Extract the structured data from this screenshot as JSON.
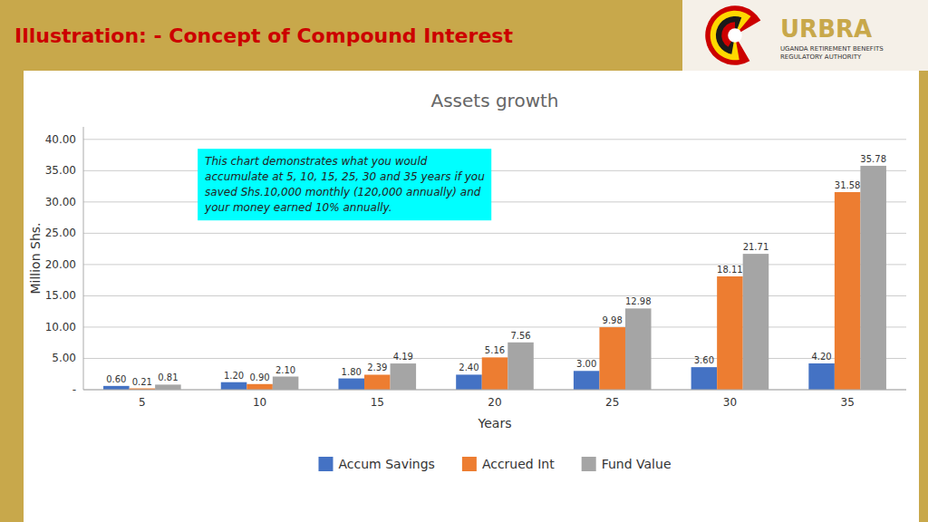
{
  "chart_data": {
    "type": "bar",
    "title": "Assets growth",
    "x_label": "Years",
    "y_label": "Million Shs.",
    "annotations": [
      "Illustration: - Concept of Compound Interest",
      "URBRA",
      "UGANDA RETIREMENT BENEFITS REGULATORY AUTHORITY",
      "This chart demonstrates what you would\naccumulate at 5, 10, 15, 25, 30 and 35 years if you\nsaved Shs.10,000 monthly (120,000 annually) and\nyour money earned 10% annually."
    ],
    "categories": [
      "5",
      "10",
      "15",
      "20",
      "25",
      "30",
      "35"
    ],
    "series": [
      {
        "name": "Accum Savings",
        "color": "#4472C4",
        "values": [
          0.6,
          1.2,
          1.8,
          2.4,
          3.0,
          3.6,
          4.2
        ],
        "value_labels": [
          "0.60",
          "1.20",
          "1.80",
          "2.40",
          "3.00",
          "3.60",
          "4.20"
        ]
      },
      {
        "name": "Accrued Int",
        "color": "#ED7D31",
        "values": [
          0.21,
          0.9,
          2.39,
          5.16,
          9.98,
          18.11,
          31.58
        ],
        "value_labels": [
          "0.21",
          "0.90",
          "2.39",
          "5.16",
          "9.98",
          "18.11",
          "31.58"
        ]
      },
      {
        "name": "Fund Value",
        "color": "#A5A5A5",
        "values": [
          0.81,
          2.1,
          4.19,
          7.56,
          12.98,
          21.71,
          35.78
        ],
        "value_labels": [
          "0.81",
          "2.10",
          "4.19",
          "7.56",
          "12.98",
          "21.71",
          "35.78"
        ]
      }
    ],
    "ylim": [
      0,
      42
    ],
    "yticks": [
      {
        "value": 0,
        "label": "-"
      },
      {
        "value": 5,
        "label": "5.00"
      },
      {
        "value": 10,
        "label": "10.00"
      },
      {
        "value": 15,
        "label": "15.00"
      },
      {
        "value": 20,
        "label": "20.00"
      },
      {
        "value": 25,
        "label": "25.00"
      },
      {
        "value": 30,
        "label": "30.00"
      },
      {
        "value": 35,
        "label": "35.00"
      },
      {
        "value": 40,
        "label": "40.00"
      }
    ],
    "grid": true,
    "legend": "bottom",
    "data_labels": true
  }
}
